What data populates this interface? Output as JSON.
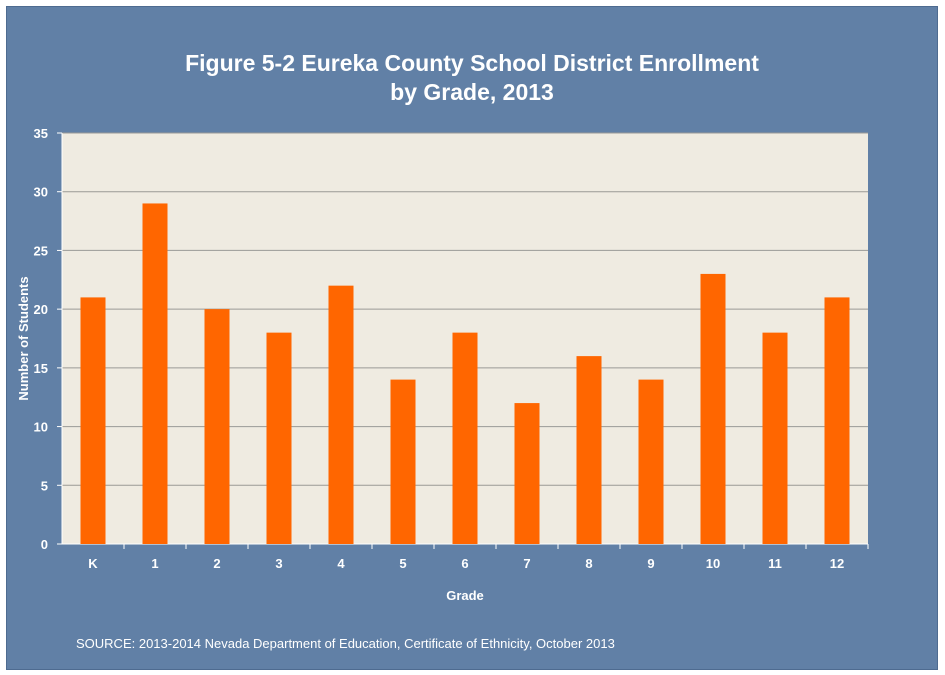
{
  "chart_data": {
    "type": "bar",
    "title_line1": "Figure 5-2 Eureka County School District Enrollment",
    "title_line2": "by Grade, 2013",
    "xlabel": "Grade",
    "ylabel": "Number of Students",
    "ylim": [
      0,
      35
    ],
    "yticks": [
      0,
      5,
      10,
      15,
      20,
      25,
      30,
      35
    ],
    "grid": true,
    "categories": [
      "K",
      "1",
      "2",
      "3",
      "4",
      "5",
      "6",
      "7",
      "8",
      "9",
      "10",
      "11",
      "12"
    ],
    "values": [
      21,
      29,
      20,
      18,
      22,
      14,
      18,
      12,
      16,
      14,
      23,
      18,
      21
    ],
    "bar_color": "#ff6600",
    "plot_background": "#efebe1",
    "frame_color": "#6180a6"
  },
  "source": "SOURCE: 2013-2014 Nevada Department of Education, Certificate of Ethnicity, October 2013"
}
